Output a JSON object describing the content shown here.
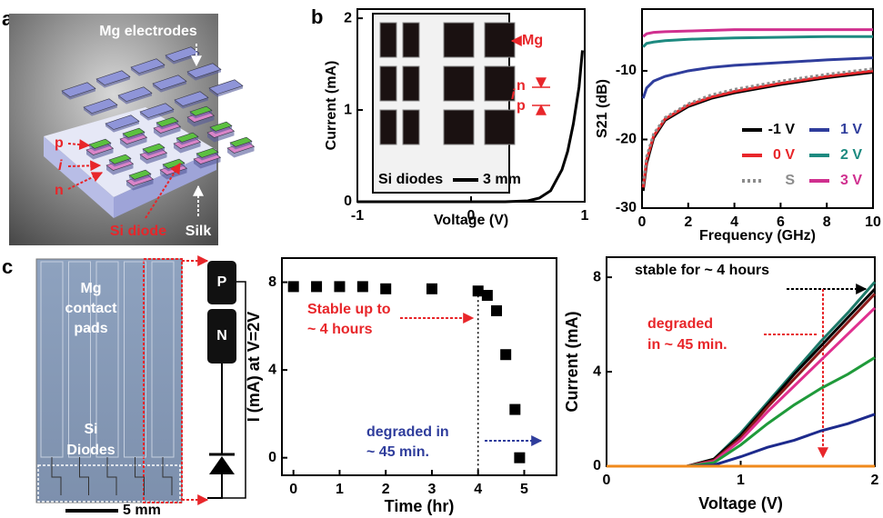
{
  "figure": {
    "panel_labels": [
      "a",
      "b",
      "c"
    ],
    "panel_a": {
      "mg_electrodes": "Mg electrodes",
      "p": "p",
      "i": "i",
      "n": "n",
      "si_diode": "Si diode",
      "silk": "Silk"
    },
    "inset": {
      "mg": "Mg",
      "n": "n",
      "i": "i",
      "p": "p",
      "si_diodes": "Si diodes",
      "scale": "3 mm"
    },
    "panel_c": {
      "mg_contact_pads": [
        "Mg",
        "contact",
        "pads"
      ],
      "si_diodes": [
        "Si",
        "Diodes"
      ],
      "scale": "5 mm",
      "p": "P",
      "n": "N"
    }
  },
  "chart_data": [
    {
      "type": "line",
      "x_label": "Voltage (V)",
      "y_label": "Current (mA)",
      "color": "#000000",
      "x": [
        -1,
        -0.5,
        0,
        0.3,
        0.5,
        0.6,
        0.7,
        0.8,
        0.85,
        0.9,
        0.95,
        0.98
      ],
      "values": [
        0,
        0,
        0,
        0,
        0.01,
        0.04,
        0.12,
        0.35,
        0.55,
        0.85,
        1.25,
        1.65
      ],
      "xlim": [
        -1,
        1
      ],
      "ylim": [
        0,
        2.1
      ],
      "xticks": [
        -1,
        0,
        1
      ],
      "yticks": [
        0,
        1,
        2
      ]
    },
    {
      "type": "line",
      "x_label": "Frequency (GHz)",
      "y_label": "S21 (dB)",
      "legend": "lower right",
      "x": [
        0.05,
        0.2,
        0.5,
        1,
        2,
        3,
        4,
        6,
        8,
        10
      ],
      "series": [
        {
          "name": "-1 V",
          "color": "#000000",
          "values": [
            -27.5,
            -23.5,
            -19.8,
            -17.2,
            -15.2,
            -14,
            -13.2,
            -12,
            -11,
            -10.2
          ]
        },
        {
          "name": "0 V",
          "color": "#e8262a",
          "values": [
            -27,
            -23,
            -19.5,
            -17,
            -15,
            -13.8,
            -13,
            -11.8,
            -10.8,
            -10
          ]
        },
        {
          "name": "S",
          "color": "#8c8c8c",
          "style": "dotted",
          "values": [
            -26.5,
            -22.5,
            -19.2,
            -16.8,
            -14.8,
            -13.5,
            -12.7,
            -11.5,
            -10.5,
            -9.7
          ]
        },
        {
          "name": "1 V",
          "color": "#2f3d9c",
          "values": [
            -14,
            -12.5,
            -11.5,
            -10.8,
            -10,
            -9.5,
            -9.2,
            -8.8,
            -8.4,
            -8.1
          ]
        },
        {
          "name": "2 V",
          "color": "#1d8a80",
          "values": [
            -6.5,
            -6,
            -5.8,
            -5.6,
            -5.4,
            -5.3,
            -5.2,
            -5.1,
            -5,
            -5
          ]
        },
        {
          "name": "3 V",
          "color": "#d0308f",
          "values": [
            -5,
            -4.6,
            -4.4,
            -4.3,
            -4.2,
            -4.1,
            -4,
            -4,
            -4,
            -4
          ]
        }
      ],
      "xlim": [
        0,
        10
      ],
      "ylim": [
        -30,
        -1
      ],
      "xticks": [
        0,
        2,
        4,
        6,
        8,
        10
      ],
      "yticks": [
        -30,
        -20,
        -10
      ]
    },
    {
      "type": "scatter",
      "x_label": "Time (hr)",
      "y_label": "I (mA) at V=2V",
      "color": "#000000",
      "x": [
        0,
        0.5,
        1,
        1.5,
        2,
        3,
        4,
        4.2,
        4.4,
        4.6,
        4.8,
        4.9
      ],
      "values": [
        7.8,
        7.8,
        7.8,
        7.8,
        7.7,
        7.7,
        7.6,
        7.4,
        6.7,
        4.7,
        2.2,
        0
      ],
      "reference_line_x": 4,
      "annotations": [
        [
          "Stable up to",
          "~ 4 hours"
        ],
        [
          "degraded in",
          "~ 45 min."
        ]
      ],
      "xlim": [
        -0.25,
        5.7
      ],
      "ylim": [
        -0.8,
        9.1
      ],
      "xticks": [
        0,
        1,
        2,
        3,
        4,
        5
      ],
      "yticks": [
        0,
        4,
        8
      ]
    },
    {
      "type": "line",
      "x_label": "Voltage (V)",
      "y_label": "Current (mA)",
      "annotations": [
        "stable for ~ 4 hours",
        [
          "degraded",
          "in ~ 45 min."
        ]
      ],
      "x": [
        0,
        0.6,
        0.8,
        1,
        1.2,
        1.4,
        1.6,
        1.8,
        2
      ],
      "series": [
        {
          "color": "#1d7a6a",
          "values": [
            0,
            0,
            0.3,
            1.4,
            2.7,
            4,
            5.3,
            6.5,
            7.8
          ]
        },
        {
          "color": "#000000",
          "values": [
            0,
            0,
            0.3,
            1.3,
            2.6,
            3.9,
            5.1,
            6.3,
            7.5
          ]
        },
        {
          "color": "#8b1a1a",
          "values": [
            0,
            0,
            0.25,
            1.2,
            2.5,
            3.7,
            4.9,
            6.1,
            7.3
          ]
        },
        {
          "color": "#e0308f",
          "values": [
            0,
            0,
            0.2,
            1.1,
            2.3,
            3.4,
            4.5,
            5.6,
            6.7
          ]
        },
        {
          "color": "#1f9a3a",
          "values": [
            0,
            0,
            0.15,
            0.9,
            1.8,
            2.6,
            3.3,
            3.9,
            4.6
          ]
        },
        {
          "color": "#1d2a8c",
          "values": [
            0,
            0,
            0.05,
            0.4,
            0.8,
            1.1,
            1.5,
            1.8,
            2.2
          ]
        },
        {
          "color": "#f08a1c",
          "values": [
            0,
            0,
            0,
            0,
            0,
            0,
            0,
            0,
            0
          ]
        }
      ],
      "xlim": [
        0,
        2
      ],
      "ylim": [
        0,
        8.85
      ],
      "xticks": [
        0,
        1,
        2
      ],
      "yticks": [
        0,
        4,
        8
      ]
    }
  ]
}
